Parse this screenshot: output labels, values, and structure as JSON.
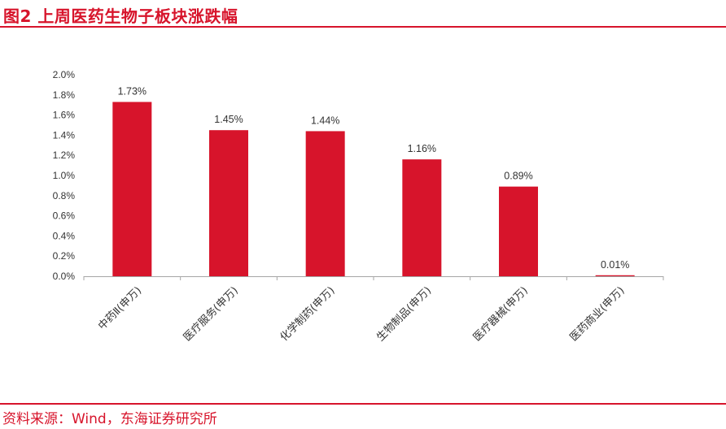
{
  "figure": {
    "title": "图2   上周医药生物子板块涨跌幅",
    "source": "资料来源：Wind，东海证券研究所"
  },
  "colors": {
    "accent": "#d7142b",
    "bar": "#d7142b",
    "axis": "#a6a6a6",
    "text": "#333333"
  },
  "chart_data": {
    "type": "bar",
    "categories": [
      "中药Ⅱ(申万)",
      "医疗服务(申万)",
      "化学制药(申万)",
      "生物制品(申万)",
      "医疗器械(申万)",
      "医药商业(申万)"
    ],
    "values": [
      1.73,
      1.45,
      1.44,
      1.16,
      0.89,
      0.01
    ],
    "data_labels": [
      "1.73%",
      "1.45%",
      "1.44%",
      "1.16%",
      "0.89%",
      "0.01%"
    ],
    "yticks": [
      "0.0%",
      "0.2%",
      "0.4%",
      "0.6%",
      "0.8%",
      "1.0%",
      "1.2%",
      "1.4%",
      "1.6%",
      "1.8%",
      "2.0%"
    ],
    "ylim": [
      0,
      2.0
    ],
    "unit": "%",
    "grid": false,
    "legend": "none"
  }
}
